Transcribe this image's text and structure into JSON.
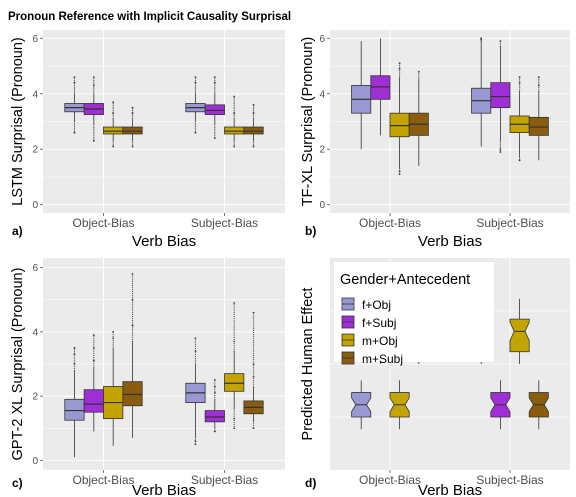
{
  "figure_title": "Pronoun Reference with Implicit Causality Surprisal",
  "colors": {
    "panel_bg": "#ebebeb",
    "grid": "#ffffff",
    "f_obj": "#9a98d2",
    "f_subj": "#a02ed6",
    "m_obj": "#c4a400",
    "m_subj": "#8a5c10",
    "outline": "#333333"
  },
  "chart_data": [
    {
      "type": "boxplot",
      "panel_label": "a)",
      "xlabel": "Verb Bias",
      "ylabel": "LSTM Surprisal (Pronoun)",
      "ylim": [
        0,
        6
      ],
      "yticks": [
        "0",
        "2",
        "4",
        "6"
      ],
      "grid": true,
      "categories": [
        "Object-Bias",
        "Subject-Bias"
      ],
      "series": [
        {
          "name": "f+Obj",
          "stats": [
            [
              3.0,
              3.35,
              3.5,
              3.65,
              4.0
            ],
            [
              3.0,
              3.35,
              3.5,
              3.65,
              4.0
            ]
          ],
          "outliers": [
            [
              2.6,
              4.4,
              4.6
            ],
            [
              2.6,
              4.4,
              4.6
            ]
          ]
        },
        {
          "name": "f+Subj",
          "stats": [
            [
              2.9,
              3.25,
              3.45,
              3.65,
              4.0
            ],
            [
              2.9,
              3.25,
              3.4,
              3.6,
              4.0
            ]
          ],
          "outliers": [
            [
              2.3,
              4.3,
              4.6
            ],
            [
              2.4,
              4.4,
              4.6
            ]
          ]
        },
        {
          "name": "m+Obj",
          "stats": [
            [
              2.3,
              2.55,
              2.65,
              2.8,
              3.1
            ],
            [
              2.3,
              2.55,
              2.65,
              2.8,
              3.1
            ]
          ],
          "outliers": [
            [
              2.1,
              3.3,
              3.7
            ],
            [
              2.1,
              3.3,
              3.9
            ]
          ]
        },
        {
          "name": "m+Subj",
          "stats": [
            [
              2.3,
              2.55,
              2.65,
              2.8,
              3.1
            ],
            [
              2.3,
              2.55,
              2.65,
              2.8,
              3.1
            ]
          ],
          "outliers": [
            [
              2.1,
              3.3,
              3.5
            ],
            [
              2.1,
              3.3,
              3.6
            ]
          ]
        }
      ]
    },
    {
      "type": "boxplot",
      "panel_label": "b)",
      "xlabel": "Verb Bias",
      "ylabel": "TF-XL Surprisal (Pronoun)",
      "ylim": [
        0,
        6
      ],
      "yticks": [
        "0",
        "2",
        "4",
        "6"
      ],
      "grid": true,
      "categories": [
        "Object-Bias",
        "Subject-Bias"
      ],
      "series": [
        {
          "name": "f+Obj",
          "stats": [
            [
              2.0,
              3.3,
              3.8,
              4.3,
              5.9
            ],
            [
              2.1,
              3.3,
              3.75,
              4.2,
              5.9
            ]
          ],
          "outliers": [
            [],
            [
              6.0,
              5.95
            ]
          ]
        },
        {
          "name": "f+Subj",
          "stats": [
            [
              2.5,
              3.8,
              4.25,
              4.65,
              6.0
            ],
            [
              2.3,
              3.5,
              3.9,
              4.4,
              5.7
            ]
          ],
          "outliers": [
            [],
            [
              1.9,
              2.0,
              5.9
            ]
          ]
        },
        {
          "name": "m+Obj",
          "stats": [
            [
              1.3,
              2.45,
              2.85,
              3.3,
              4.6
            ],
            [
              1.7,
              2.6,
              2.9,
              3.2,
              4.1
            ]
          ],
          "outliers": [
            [
              1.1,
              1.2,
              4.9,
              5.1
            ],
            [
              1.6,
              4.4,
              4.6
            ]
          ]
        },
        {
          "name": "m+Subj",
          "stats": [
            [
              1.4,
              2.5,
              2.9,
              3.3,
              4.5
            ],
            [
              1.6,
              2.5,
              2.8,
              3.15,
              4.1
            ]
          ],
          "outliers": [
            [
              4.8
            ],
            [
              4.3,
              4.6
            ]
          ]
        }
      ]
    },
    {
      "type": "boxplot",
      "panel_label": "c)",
      "xlabel": "Verb Bias",
      "ylabel": "GPT-2 XL Surprisal (Pronoun)",
      "ylim": [
        0,
        6
      ],
      "yticks": [
        "0",
        "2",
        "4",
        "6"
      ],
      "grid": true,
      "categories": [
        "Object-Bias",
        "Subject-Bias"
      ],
      "series": [
        {
          "name": "f+Obj",
          "stats": [
            [
              0.1,
              1.25,
              1.55,
              1.9,
              2.8
            ],
            [
              0.7,
              1.8,
              2.1,
              2.4,
              3.0
            ]
          ],
          "outliers": [
            [
              3.0,
              3.3,
              3.5
            ],
            [
              0.5,
              0.6,
              3.4,
              3.8
            ]
          ]
        },
        {
          "name": "f+Subj",
          "stats": [
            [
              0.9,
              1.5,
              1.75,
              2.2,
              2.9
            ],
            [
              1.0,
              1.2,
              1.35,
              1.55,
              1.9
            ]
          ],
          "outliers": [
            [
              3.1,
              3.5,
              3.9
            ],
            [
              0.9,
              2.1,
              2.3,
              2.5
            ]
          ]
        },
        {
          "name": "m+Obj",
          "stats": [
            [
              0.45,
              1.3,
              1.8,
              2.3,
              3.5
            ],
            [
              1.6,
              2.15,
              2.4,
              2.7,
              3.4
            ]
          ],
          "outliers": [
            [
              3.8,
              4.0
            ],
            [
              1.0,
              1.3,
              3.7,
              4.9
            ]
          ]
        },
        {
          "name": "m+Subj",
          "stats": [
            [
              0.7,
              1.7,
              2.05,
              2.45,
              3.7
            ],
            [
              1.2,
              1.45,
              1.65,
              1.85,
              2.3
            ]
          ],
          "outliers": [
            [
              4.2,
              5.0,
              5.8
            ],
            [
              1.0,
              2.6,
              3.0,
              4.6
            ]
          ]
        }
      ]
    },
    {
      "type": "boxplot",
      "notched": true,
      "panel_label": "d)",
      "xlabel": "Verb Bias",
      "ylabel": "Predicted Human Effect",
      "yticks": [],
      "grid": true,
      "legend_title": "Gender+Antecedent",
      "legend_position": "top-left",
      "categories": [
        "Object-Bias",
        "Subject-Bias"
      ],
      "series": [
        {
          "name": "f+Obj",
          "stats": [
            [
              0.2,
              0.35,
              0.5,
              0.65,
              0.8
            ],
            [
              1.0,
              1.15,
              1.4,
              1.55,
              1.8
            ]
          ]
        },
        {
          "name": "f+Subj",
          "stats": [
            [
              1.0,
              1.15,
              1.4,
              1.55,
              1.8
            ],
            [
              0.2,
              0.35,
              0.5,
              0.65,
              0.8
            ]
          ]
        },
        {
          "name": "m+Obj",
          "stats": [
            [
              0.2,
              0.35,
              0.5,
              0.65,
              0.8
            ],
            [
              1.0,
              1.15,
              1.4,
              1.55,
              1.8
            ]
          ]
        },
        {
          "name": "m+Subj",
          "stats": [
            [
              1.0,
              1.15,
              1.4,
              1.55,
              1.8
            ],
            [
              0.2,
              0.35,
              0.5,
              0.65,
              0.8
            ]
          ]
        }
      ]
    }
  ]
}
